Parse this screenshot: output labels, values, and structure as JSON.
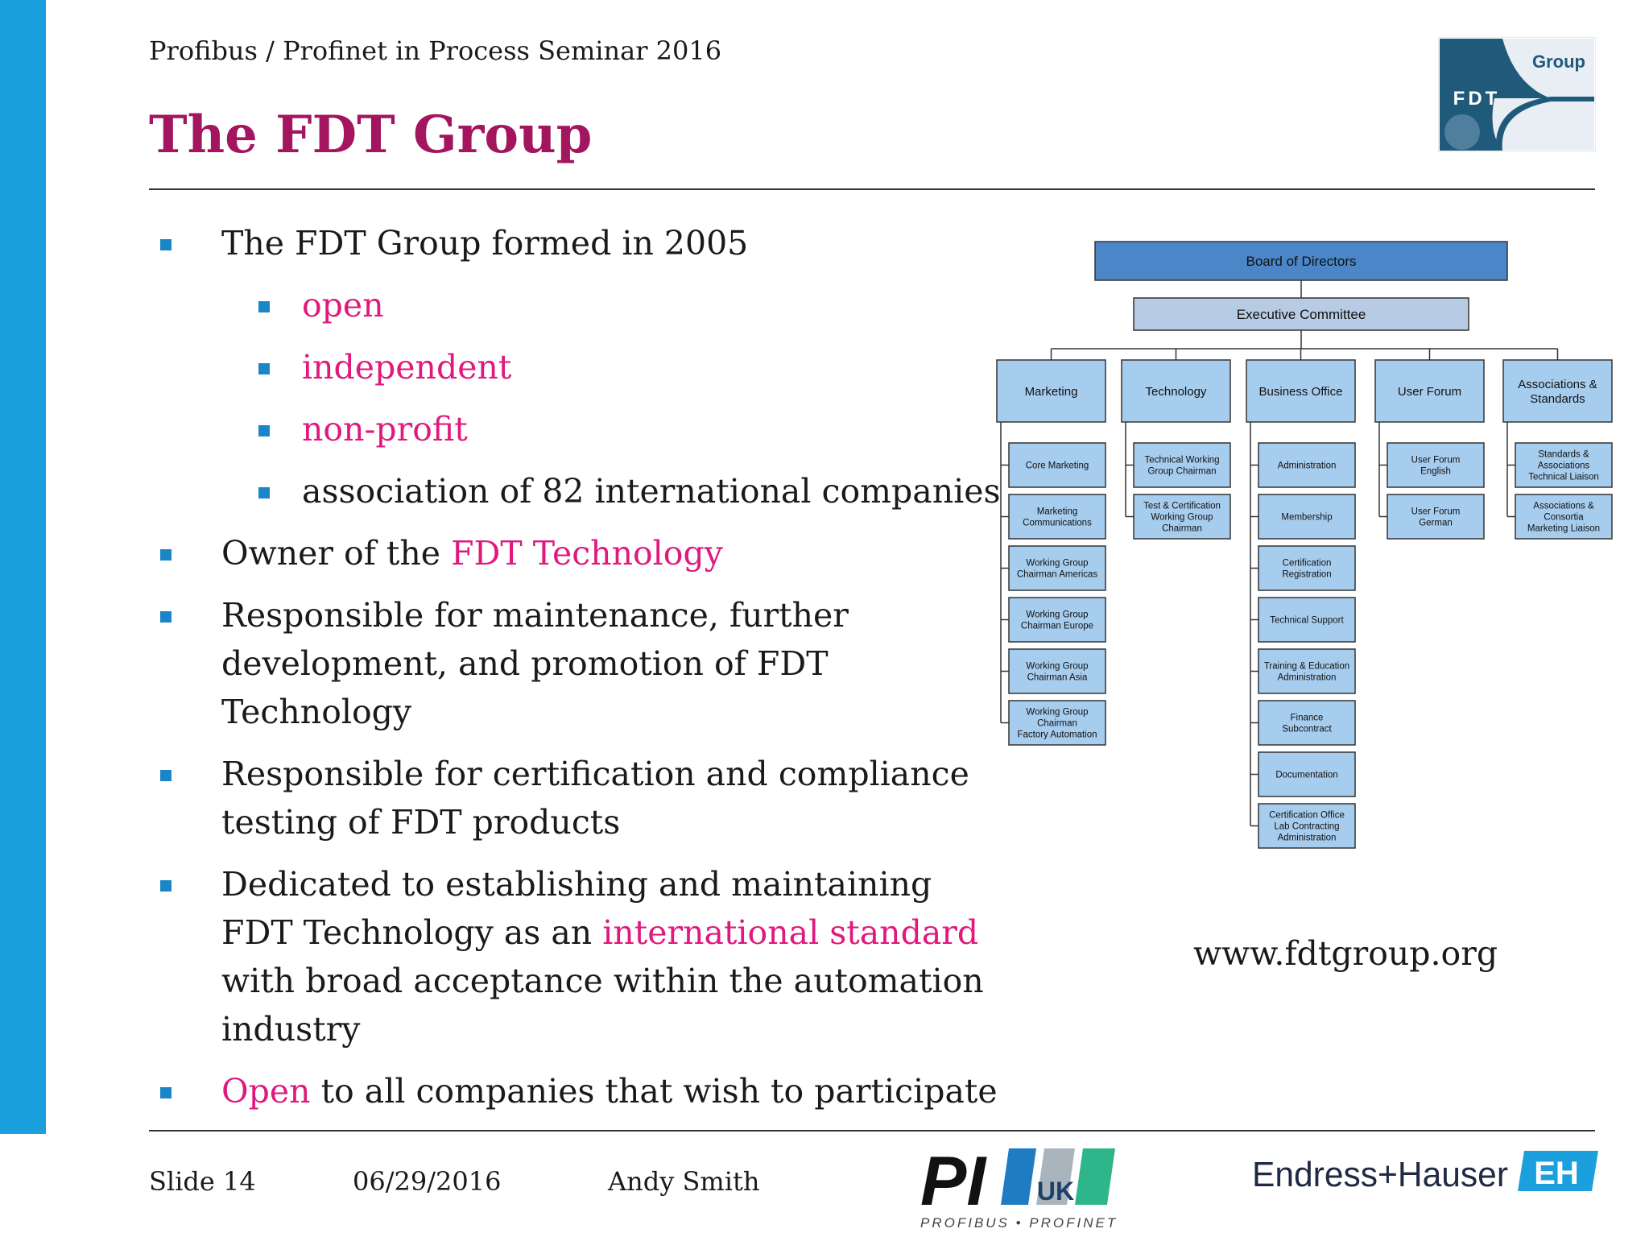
{
  "header": {
    "subtitle": "Profibus / Profinet in Process Seminar 2016",
    "title": "The FDT Group",
    "logo": {
      "text_group": "Group",
      "text_fdt": "FDT"
    }
  },
  "bullets": [
    {
      "level": 1,
      "parts": [
        {
          "text": "The FDT Group formed in 2005"
        }
      ]
    },
    {
      "level": 2,
      "parts": [
        {
          "text": "open",
          "highlight": true
        }
      ]
    },
    {
      "level": 2,
      "parts": [
        {
          "text": "independent",
          "highlight": true
        }
      ]
    },
    {
      "level": 2,
      "parts": [
        {
          "text": "non-profit",
          "highlight": true
        }
      ]
    },
    {
      "level": 2,
      "parts": [
        {
          "text": "association of 82 international companies"
        }
      ]
    },
    {
      "level": 1,
      "parts": [
        {
          "text": "Owner of the "
        },
        {
          "text": "FDT Technology",
          "highlight": true
        }
      ]
    },
    {
      "level": 1,
      "parts": [
        {
          "text": "Responsible for maintenance, further development, and promotion of FDT Technology"
        }
      ]
    },
    {
      "level": 1,
      "parts": [
        {
          "text": "Responsible for certification and compliance testing of FDT products"
        }
      ]
    },
    {
      "level": 1,
      "parts": [
        {
          "text": "Dedicated to establishing and maintaining FDT Technology as an "
        },
        {
          "text": "international standard",
          "highlight": true
        },
        {
          "text": " with broad acceptance within the automation industry"
        }
      ]
    },
    {
      "level": 1,
      "parts": [
        {
          "text": "Open",
          "highlight": true
        },
        {
          "text": " to all companies that wish to participate"
        }
      ]
    }
  ],
  "org_chart": {
    "board": "Board of Directors",
    "executive": "Executive Committee",
    "departments": [
      {
        "name": [
          "Marketing"
        ],
        "children": [
          [
            "Core Marketing"
          ],
          [
            "Marketing",
            "Communications"
          ],
          [
            "Working Group",
            "Chairman Americas"
          ],
          [
            "Working Group",
            "Chairman Europe"
          ],
          [
            "Working Group",
            "Chairman Asia"
          ],
          [
            "Working Group",
            "Chairman",
            "Factory Automation"
          ]
        ]
      },
      {
        "name": [
          "Technology"
        ],
        "children": [
          [
            "Technical Working",
            "Group Chairman"
          ],
          [
            "Test & Certification",
            "Working Group",
            "Chairman"
          ]
        ]
      },
      {
        "name": [
          "Business Office"
        ],
        "children": [
          [
            "Administration"
          ],
          [
            "Membership"
          ],
          [
            "Certification",
            "Registration"
          ],
          [
            "Technical Support"
          ],
          [
            "Training & Education",
            "Administration"
          ],
          [
            "Finance",
            "Subcontract"
          ],
          [
            "Documentation"
          ],
          [
            "Certification Office",
            "Lab Contracting",
            "Administration"
          ]
        ]
      },
      {
        "name": [
          "User Forum"
        ],
        "children": [
          [
            "User Forum",
            "English"
          ],
          [
            "User Forum",
            "German"
          ]
        ]
      },
      {
        "name": [
          "Associations &",
          "Standards"
        ],
        "children": [
          [
            "Standards &",
            "Associations",
            "Technical Liaison"
          ],
          [
            "Associations &",
            "Consortia",
            "Marketing Liaison"
          ]
        ]
      }
    ]
  },
  "url": "www.fdtgroup.org",
  "footer": {
    "slide": "Slide 14",
    "date": "06/29/2016",
    "author": "Andy Smith",
    "pi_logo": {
      "pi": "PI",
      "uk": "UK",
      "tagline": "PROFIBUS • PROFINET"
    },
    "eh_logo": {
      "name": "Endress+Hauser",
      "mark": "EH"
    }
  },
  "colors": {
    "title": "#a3155e",
    "highlight": "#e0197d",
    "left_bar": "#1ba0dd",
    "bullet": "#1a86c7",
    "board_box": "#4a86c8",
    "exec_box": "#b8cbe4",
    "dept_box": "#a7cdee"
  }
}
